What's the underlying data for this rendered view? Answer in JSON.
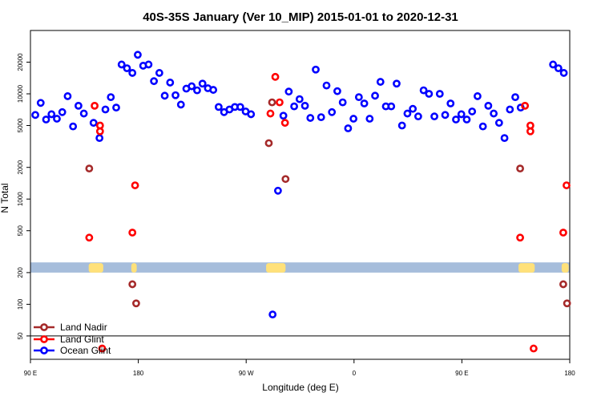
{
  "chart_data": {
    "type": "scatter",
    "title": "40S-35S January (Ver 10_MIP)   2015-01-01 to 2020-12-31",
    "xlabel": "Longitude (deg E)",
    "ylabel": "N Total",
    "y_scale": "log",
    "ylim": [
      30,
      40000
    ],
    "x_ticks": [
      {
        "label": "90 E",
        "pos": 0
      },
      {
        "label": "180",
        "pos": 0.2
      },
      {
        "label": "90 W",
        "pos": 0.4
      },
      {
        "label": "0",
        "pos": 0.6
      },
      {
        "label": "90 E",
        "pos": 0.8
      },
      {
        "label": "180",
        "pos": 1.0
      }
    ],
    "y_ticks": [
      50,
      100,
      200,
      500,
      1000,
      2000,
      5000,
      10000,
      20000
    ],
    "legend": {
      "placement": "bottom-left"
    },
    "colors": {
      "land_nadir": "#a52a2a",
      "land_glint": "#ff0000",
      "ocean_glint": "#0000ff",
      "ocean_band": "#a6bddb",
      "land_band": "#ffe17a"
    },
    "series": [
      {
        "name": "Land Nadir",
        "color": "#a52a2a",
        "points": [
          [
            0.109,
            1950
          ],
          [
            0.189,
            155
          ],
          [
            0.196,
            102
          ],
          [
            0.442,
            3400
          ],
          [
            0.448,
            8300
          ],
          [
            0.473,
            1550
          ],
          [
            0.908,
            1950
          ],
          [
            0.988,
            155
          ],
          [
            0.995,
            102
          ]
        ]
      },
      {
        "name": "Land Glint",
        "color": "#ff0000",
        "points": [
          [
            0.109,
            430
          ],
          [
            0.119,
            7700
          ],
          [
            0.129,
            4400
          ],
          [
            0.129,
            5000
          ],
          [
            0.189,
            480
          ],
          [
            0.194,
            1350
          ],
          [
            0.445,
            6500
          ],
          [
            0.454,
            14500
          ],
          [
            0.462,
            8300
          ],
          [
            0.472,
            5300
          ],
          [
            0.133,
            38
          ],
          [
            0.908,
            430
          ],
          [
            0.917,
            7700
          ],
          [
            0.927,
            4400
          ],
          [
            0.927,
            5000
          ],
          [
            0.933,
            38
          ],
          [
            0.988,
            480
          ],
          [
            0.994,
            1350
          ]
        ]
      },
      {
        "name": "Ocean Glint",
        "color": "#0000ff",
        "points": [
          [
            0.009,
            6300
          ],
          [
            0.019,
            8200
          ],
          [
            0.029,
            5700
          ],
          [
            0.039,
            6400
          ],
          [
            0.049,
            5800
          ],
          [
            0.059,
            6700
          ],
          [
            0.069,
            9500
          ],
          [
            0.079,
            4900
          ],
          [
            0.089,
            7700
          ],
          [
            0.099,
            6500
          ],
          [
            0.117,
            5300
          ],
          [
            0.128,
            3800
          ],
          [
            0.139,
            7100
          ],
          [
            0.149,
            9300
          ],
          [
            0.159,
            7400
          ],
          [
            0.169,
            19000
          ],
          [
            0.179,
            17500
          ],
          [
            0.189,
            15800
          ],
          [
            0.199,
            23500
          ],
          [
            0.209,
            18500
          ],
          [
            0.219,
            19000
          ],
          [
            0.229,
            13200
          ],
          [
            0.239,
            15800
          ],
          [
            0.249,
            9600
          ],
          [
            0.259,
            12800
          ],
          [
            0.269,
            9700
          ],
          [
            0.279,
            7900
          ],
          [
            0.289,
            11200
          ],
          [
            0.299,
            11800
          ],
          [
            0.309,
            10800
          ],
          [
            0.319,
            12500
          ],
          [
            0.329,
            11300
          ],
          [
            0.339,
            10900
          ],
          [
            0.349,
            7500
          ],
          [
            0.359,
            6700
          ],
          [
            0.369,
            7100
          ],
          [
            0.379,
            7500
          ],
          [
            0.389,
            7500
          ],
          [
            0.399,
            6800
          ],
          [
            0.409,
            6400
          ],
          [
            0.449,
            80
          ],
          [
            0.459,
            1200
          ],
          [
            0.469,
            6200
          ],
          [
            0.479,
            10500
          ],
          [
            0.489,
            7600
          ],
          [
            0.499,
            8900
          ],
          [
            0.509,
            7700
          ],
          [
            0.519,
            5900
          ],
          [
            0.529,
            17000
          ],
          [
            0.539,
            6000
          ],
          [
            0.549,
            12000
          ],
          [
            0.559,
            6700
          ],
          [
            0.569,
            10600
          ],
          [
            0.579,
            8300
          ],
          [
            0.589,
            4700
          ],
          [
            0.599,
            5800
          ],
          [
            0.609,
            9300
          ],
          [
            0.619,
            8100
          ],
          [
            0.629,
            5800
          ],
          [
            0.639,
            9600
          ],
          [
            0.649,
            13000
          ],
          [
            0.659,
            7600
          ],
          [
            0.669,
            7600
          ],
          [
            0.679,
            12500
          ],
          [
            0.689,
            5000
          ],
          [
            0.699,
            6500
          ],
          [
            0.709,
            7200
          ],
          [
            0.719,
            6100
          ],
          [
            0.729,
            10800
          ],
          [
            0.739,
            10000
          ],
          [
            0.749,
            6100
          ],
          [
            0.759,
            10000
          ],
          [
            0.769,
            6300
          ],
          [
            0.779,
            8100
          ],
          [
            0.789,
            5700
          ],
          [
            0.799,
            6400
          ],
          [
            0.809,
            5700
          ],
          [
            0.819,
            6800
          ],
          [
            0.829,
            9500
          ],
          [
            0.839,
            4900
          ],
          [
            0.849,
            7700
          ],
          [
            0.859,
            6500
          ],
          [
            0.869,
            5300
          ],
          [
            0.879,
            3800
          ],
          [
            0.889,
            7100
          ],
          [
            0.899,
            9300
          ],
          [
            0.909,
            7400
          ],
          [
            0.969,
            19000
          ],
          [
            0.979,
            17500
          ],
          [
            0.989,
            15800
          ]
        ]
      }
    ]
  }
}
